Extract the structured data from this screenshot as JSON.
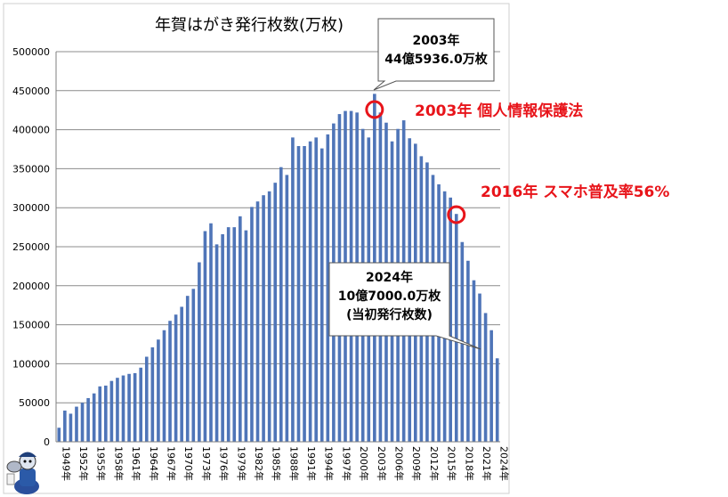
{
  "chart_data": {
    "type": "bar",
    "title": "年賀はがき発行枚数(万枚)",
    "x": [
      1949,
      1950,
      1951,
      1952,
      1953,
      1954,
      1955,
      1956,
      1957,
      1958,
      1959,
      1960,
      1961,
      1962,
      1963,
      1964,
      1965,
      1966,
      1967,
      1968,
      1969,
      1970,
      1971,
      1972,
      1973,
      1974,
      1975,
      1976,
      1977,
      1978,
      1979,
      1980,
      1981,
      1982,
      1983,
      1984,
      1985,
      1986,
      1987,
      1988,
      1989,
      1990,
      1991,
      1992,
      1993,
      1994,
      1995,
      1996,
      1997,
      1998,
      1999,
      2000,
      2001,
      2002,
      2003,
      2004,
      2005,
      2006,
      2007,
      2008,
      2009,
      2010,
      2011,
      2012,
      2013,
      2014,
      2015,
      2016,
      2017,
      2018,
      2019,
      2020,
      2021,
      2022,
      2023,
      2024
    ],
    "values": [
      18000,
      40000,
      36000,
      45000,
      50000,
      56000,
      62000,
      71000,
      72000,
      78000,
      82000,
      85000,
      87000,
      88000,
      95000,
      109000,
      121000,
      131000,
      143000,
      155000,
      163000,
      173000,
      187000,
      196000,
      230000,
      270000,
      280000,
      253000,
      266000,
      275000,
      275000,
      289000,
      271000,
      301000,
      308000,
      316000,
      321000,
      332000,
      352000,
      342000,
      390000,
      379000,
      379000,
      385000,
      390000,
      376000,
      394000,
      408000,
      420000,
      424000,
      424000,
      422000,
      401000,
      390000,
      445936,
      422000,
      409000,
      385000,
      401000,
      412000,
      389000,
      382000,
      366000,
      358000,
      342000,
      330000,
      321000,
      313000,
      292000,
      256000,
      232000,
      207000,
      190000,
      165000,
      143000,
      107000
    ],
    "xtick_labels": [
      "1949年",
      "1952年",
      "1955年",
      "1958年",
      "1961年",
      "1964年",
      "1967年",
      "1970年",
      "1973年",
      "1976年",
      "1979年",
      "1982年",
      "1985年",
      "1988年",
      "1991年",
      "1994年",
      "1997年",
      "2000年",
      "2003年",
      "2006年",
      "2009年",
      "2012年",
      "2015年",
      "2018年",
      "2021年",
      "2024年"
    ],
    "ytick_labels": [
      "0",
      "50000",
      "100000",
      "150000",
      "200000",
      "250000",
      "300000",
      "350000",
      "400000",
      "450000",
      "500000"
    ],
    "ylim": [
      0,
      500000
    ],
    "grid": "horizontal",
    "bar_color": "#4f75b8"
  },
  "annotations": {
    "peak_callout_year": "2003年",
    "peak_callout_value": "44億5936.0万枚",
    "event_2003": "2003年 個人情報保護法",
    "event_2016": "2016年 スマホ普及率56%",
    "latest_callout_year": "2024年",
    "latest_callout_value": "10億7000.0万枚",
    "latest_callout_note": "(当初発行枚数)",
    "accent_color": "#e8141a"
  },
  "logo": {
    "icon": "mascot-character-icon"
  }
}
